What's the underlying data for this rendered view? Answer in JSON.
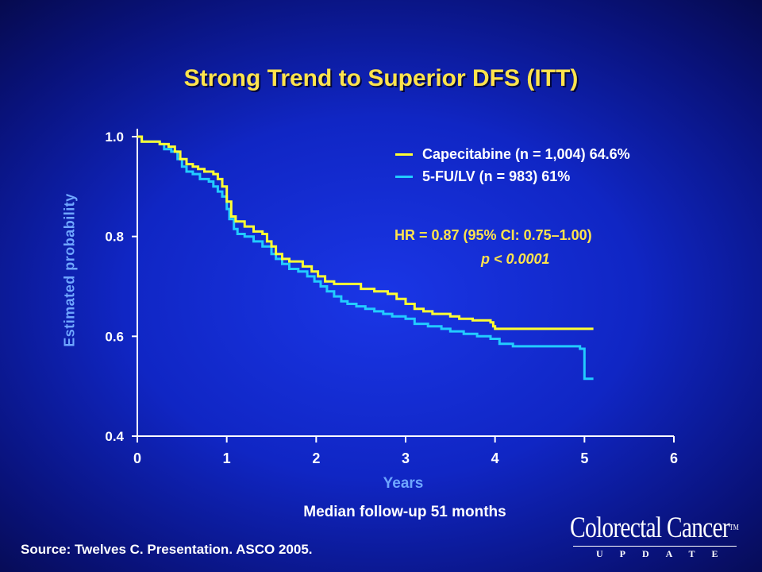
{
  "title": "Strong Trend to Superior DFS (ITT)",
  "legend": {
    "capecitabine": "Capecitabine (n = 1,004)  64.6%",
    "fu": "5-FU/LV (n = 983) 61%"
  },
  "annotations": {
    "hr": "HR = 0.87 (95% CI: 0.75–1.00)",
    "p": "p < 0.0001"
  },
  "footer": {
    "followup": "Median follow-up 51 months",
    "source": "Source: Twelves C. Presentation. ASCO 2005."
  },
  "logo": {
    "main": "Colorectal Cancer",
    "tm": "TM",
    "sub": "UPDATE"
  },
  "colors": {
    "capecitabine": "#ffff33",
    "fu": "#22ccff",
    "title": "#ffe34d",
    "axis_label": "#6fa6ff"
  },
  "chart_data": {
    "type": "line",
    "title": "Strong Trend to Superior DFS (ITT)",
    "xlabel": "Years",
    "ylabel": "Estimated probability",
    "xlim": [
      0,
      6
    ],
    "ylim": [
      0.4,
      1.0
    ],
    "x_ticks": [
      "0",
      "1",
      "2",
      "3",
      "4",
      "5",
      "6"
    ],
    "y_ticks": [
      "0.4",
      "0.6",
      "0.8",
      "1.0"
    ],
    "grid": false,
    "legend_position": "top-right",
    "series": [
      {
        "name": "Capecitabine (n = 1,004)  64.6%",
        "color": "#ffff33",
        "step": true,
        "points": [
          [
            0,
            1.0
          ],
          [
            0.05,
            0.99
          ],
          [
            0.25,
            0.985
          ],
          [
            0.35,
            0.98
          ],
          [
            0.42,
            0.97
          ],
          [
            0.48,
            0.955
          ],
          [
            0.55,
            0.945
          ],
          [
            0.62,
            0.94
          ],
          [
            0.68,
            0.935
          ],
          [
            0.75,
            0.93
          ],
          [
            0.85,
            0.925
          ],
          [
            0.9,
            0.915
          ],
          [
            0.95,
            0.9
          ],
          [
            1.0,
            0.87
          ],
          [
            1.05,
            0.84
          ],
          [
            1.1,
            0.83
          ],
          [
            1.2,
            0.82
          ],
          [
            1.3,
            0.81
          ],
          [
            1.4,
            0.805
          ],
          [
            1.45,
            0.79
          ],
          [
            1.5,
            0.78
          ],
          [
            1.55,
            0.765
          ],
          [
            1.62,
            0.755
          ],
          [
            1.7,
            0.75
          ],
          [
            1.85,
            0.74
          ],
          [
            1.95,
            0.73
          ],
          [
            2.02,
            0.72
          ],
          [
            2.1,
            0.71
          ],
          [
            2.2,
            0.705
          ],
          [
            2.5,
            0.695
          ],
          [
            2.65,
            0.69
          ],
          [
            2.8,
            0.685
          ],
          [
            2.9,
            0.675
          ],
          [
            3.0,
            0.665
          ],
          [
            3.1,
            0.655
          ],
          [
            3.2,
            0.65
          ],
          [
            3.3,
            0.645
          ],
          [
            3.5,
            0.64
          ],
          [
            3.6,
            0.635
          ],
          [
            3.75,
            0.632
          ],
          [
            3.95,
            0.628
          ],
          [
            3.98,
            0.62
          ],
          [
            4.0,
            0.615
          ],
          [
            5.1,
            0.615
          ]
        ]
      },
      {
        "name": "5-FU/LV (n = 983) 61%",
        "color": "#22ccff",
        "step": true,
        "points": [
          [
            0,
            1.0
          ],
          [
            0.05,
            0.99
          ],
          [
            0.25,
            0.985
          ],
          [
            0.3,
            0.975
          ],
          [
            0.38,
            0.97
          ],
          [
            0.45,
            0.955
          ],
          [
            0.5,
            0.94
          ],
          [
            0.55,
            0.93
          ],
          [
            0.62,
            0.925
          ],
          [
            0.7,
            0.915
          ],
          [
            0.8,
            0.91
          ],
          [
            0.85,
            0.9
          ],
          [
            0.9,
            0.89
          ],
          [
            0.95,
            0.88
          ],
          [
            1.0,
            0.855
          ],
          [
            1.03,
            0.835
          ],
          [
            1.08,
            0.815
          ],
          [
            1.12,
            0.805
          ],
          [
            1.2,
            0.8
          ],
          [
            1.3,
            0.79
          ],
          [
            1.4,
            0.78
          ],
          [
            1.5,
            0.765
          ],
          [
            1.55,
            0.755
          ],
          [
            1.62,
            0.745
          ],
          [
            1.7,
            0.735
          ],
          [
            1.8,
            0.73
          ],
          [
            1.9,
            0.72
          ],
          [
            1.98,
            0.71
          ],
          [
            2.05,
            0.7
          ],
          [
            2.12,
            0.69
          ],
          [
            2.2,
            0.68
          ],
          [
            2.28,
            0.67
          ],
          [
            2.35,
            0.665
          ],
          [
            2.45,
            0.66
          ],
          [
            2.55,
            0.655
          ],
          [
            2.65,
            0.65
          ],
          [
            2.75,
            0.645
          ],
          [
            2.85,
            0.64
          ],
          [
            3.0,
            0.635
          ],
          [
            3.1,
            0.625
          ],
          [
            3.25,
            0.62
          ],
          [
            3.4,
            0.615
          ],
          [
            3.5,
            0.61
          ],
          [
            3.65,
            0.605
          ],
          [
            3.8,
            0.6
          ],
          [
            3.95,
            0.595
          ],
          [
            4.05,
            0.585
          ],
          [
            4.2,
            0.58
          ],
          [
            4.95,
            0.575
          ],
          [
            5.0,
            0.515
          ],
          [
            5.1,
            0.515
          ]
        ]
      }
    ]
  }
}
